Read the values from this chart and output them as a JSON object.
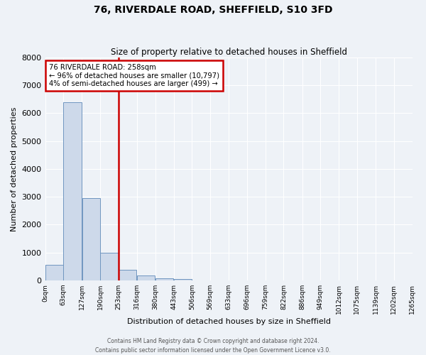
{
  "title": "76, RIVERDALE ROAD, SHEFFIELD, S10 3FD",
  "subtitle": "Size of property relative to detached houses in Sheffield",
  "xlabel": "Distribution of detached houses by size in Sheffield",
  "ylabel": "Number of detached properties",
  "bar_color": "#cdd9ea",
  "bar_edge_color": "#7096c0",
  "background_color": "#eef2f7",
  "grid_color": "#ffffff",
  "bin_edges": [
    0,
    63,
    127,
    190,
    253,
    316,
    380,
    443,
    506,
    569,
    633,
    696,
    759,
    822,
    886,
    949,
    1012,
    1075,
    1139,
    1202,
    1265
  ],
  "bin_labels": [
    "0sqm",
    "63sqm",
    "127sqm",
    "190sqm",
    "253sqm",
    "316sqm",
    "380sqm",
    "443sqm",
    "506sqm",
    "569sqm",
    "633sqm",
    "696sqm",
    "759sqm",
    "822sqm",
    "886sqm",
    "949sqm",
    "1012sqm",
    "1075sqm",
    "1139sqm",
    "1202sqm",
    "1265sqm"
  ],
  "bar_heights": [
    560,
    6400,
    2950,
    1000,
    390,
    180,
    80,
    60,
    0,
    0,
    0,
    0,
    0,
    0,
    0,
    0,
    0,
    0,
    0,
    0
  ],
  "vline_x": 253,
  "vline_color": "#cc0000",
  "annotation_line1": "76 RIVERDALE ROAD: 258sqm",
  "annotation_line2": "← 96% of detached houses are smaller (10,797)",
  "annotation_line3": "4% of semi-detached houses are larger (499) →",
  "annotation_box_color": "#ffffff",
  "annotation_box_edge": "#cc0000",
  "ylim": [
    0,
    8000
  ],
  "yticks": [
    0,
    1000,
    2000,
    3000,
    4000,
    5000,
    6000,
    7000,
    8000
  ],
  "footer_line1": "Contains HM Land Registry data © Crown copyright and database right 2024.",
  "footer_line2": "Contains public sector information licensed under the Open Government Licence v3.0."
}
